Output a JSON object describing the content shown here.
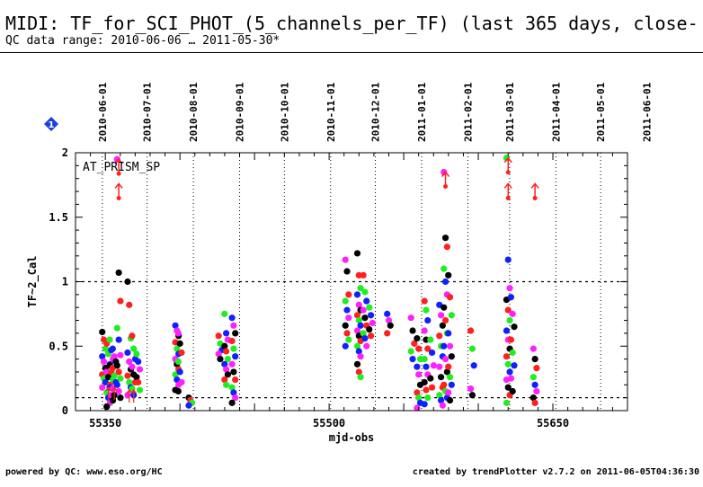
{
  "header": {
    "title": "MIDI: TF_for_SCI_PHOT_(5_channels_per_TF) (last 365 days, close-",
    "subtitle": "QC data range: 2010-06-06 … 2011-05-30*"
  },
  "footer": {
    "left": "powered by QC: www.eso.org/HC",
    "right": "created by trendPlotter v2.7.2 on 2011-06-05T04:36:30"
  },
  "badge": {
    "icon": "info-diamond-icon",
    "label": "1",
    "color": "#1a3fe0"
  },
  "colors": {
    "black": "#000000",
    "red": "#ff2020",
    "blue": "#1020ff",
    "green": "#20ee20",
    "magenta": "#ff20ff",
    "reference": "#000000"
  },
  "chart_data": {
    "type": "scatter",
    "xlabel": "mjd-obs",
    "ylabel": "TF~2_Cal",
    "annotation": "AT_PRISM_SP",
    "xlim": [
      55330,
      55700
    ],
    "ylim": [
      0,
      2
    ],
    "x_ticks": [
      {
        "value": 55350,
        "label": "55350"
      },
      {
        "value": 55500,
        "label": "55500"
      },
      {
        "value": 55650,
        "label": "55650"
      }
    ],
    "y_ticks": [
      {
        "value": 0,
        "label": "0"
      },
      {
        "value": 0.5,
        "label": "0.5"
      },
      {
        "value": 1,
        "label": "1"
      },
      {
        "value": 1.5,
        "label": "1.5"
      },
      {
        "value": 2,
        "label": "2"
      }
    ],
    "reference_lines": [
      1.0,
      0.1
    ],
    "date_markers": [
      {
        "mjd": 55348,
        "label": "2010-06-01"
      },
      {
        "mjd": 55378,
        "label": "2010-07-01"
      },
      {
        "mjd": 55409,
        "label": "2010-08-01"
      },
      {
        "mjd": 55440,
        "label": "2010-09-01"
      },
      {
        "mjd": 55470,
        "label": "2010-10-01"
      },
      {
        "mjd": 55501,
        "label": "2010-11-01"
      },
      {
        "mjd": 55531,
        "label": "2010-12-01"
      },
      {
        "mjd": 55562,
        "label": "2011-01-01"
      },
      {
        "mjd": 55593,
        "label": "2011-02-01"
      },
      {
        "mjd": 55621,
        "label": "2011-03-01"
      },
      {
        "mjd": 55652,
        "label": "2011-04-01"
      },
      {
        "mjd": 55682,
        "label": "2011-05-01"
      },
      {
        "mjd": 55713,
        "label": "2011-06-01"
      }
    ],
    "clusters": [
      {
        "x": 55349,
        "values": [
          0.61,
          0.55,
          0.48,
          0.42,
          0.38,
          0.33,
          0.28,
          0.25,
          0.22,
          0.18
        ]
      },
      {
        "x": 55352,
        "values": [
          0.52,
          0.44,
          0.36,
          0.3,
          0.26,
          0.2,
          0.14,
          0.1,
          0.06,
          0.03
        ]
      },
      {
        "x": 55354,
        "values": [
          0.55,
          0.47,
          0.4,
          0.35,
          0.3,
          0.24,
          0.18,
          0.12,
          0.08
        ]
      },
      {
        "x": 55356,
        "values": [
          0.48,
          0.42,
          0.38,
          0.33,
          0.27,
          0.22,
          0.17,
          0.12
        ]
      },
      {
        "x": 55359,
        "values": [
          1.95,
          1.07,
          0.85,
          0.64,
          0.55,
          0.43,
          0.35,
          0.3,
          0.25,
          0.2,
          0.15,
          0.1
        ]
      },
      {
        "x": 55366,
        "values": [
          1.0,
          0.82,
          0.56,
          0.45,
          0.38,
          0.32,
          0.27,
          0.22,
          0.18,
          0.12
        ]
      },
      {
        "x": 55369,
        "values": [
          0.58,
          0.48,
          0.4,
          0.34,
          0.28,
          0.22,
          0.17,
          0.12
        ]
      },
      {
        "x": 55372,
        "values": [
          0.44,
          0.38,
          0.32,
          0.26,
          0.22,
          0.16
        ]
      },
      {
        "x": 55398,
        "values": [
          0.66,
          0.62,
          0.58,
          0.53,
          0.48,
          0.44,
          0.4,
          0.36,
          0.32,
          0.28,
          0.24,
          0.2,
          0.16
        ]
      },
      {
        "x": 55400,
        "values": [
          0.6,
          0.52,
          0.45,
          0.38,
          0.3,
          0.22,
          0.15
        ]
      },
      {
        "x": 55407,
        "values": [
          0.1,
          0.08,
          0.06,
          0.04
        ]
      },
      {
        "x": 55427,
        "values": [
          0.58,
          0.52,
          0.47,
          0.44,
          0.4
        ]
      },
      {
        "x": 55431,
        "values": [
          0.75,
          0.6,
          0.55,
          0.5,
          0.46,
          0.4,
          0.36,
          0.32,
          0.28,
          0.24,
          0.2
        ]
      },
      {
        "x": 55436,
        "values": [
          0.72,
          0.66,
          0.6,
          0.54,
          0.48,
          0.42,
          0.36,
          0.3,
          0.24,
          0.18,
          0.14,
          0.1,
          0.06
        ]
      },
      {
        "x": 55512,
        "values": [
          1.17,
          1.08,
          0.9,
          0.85,
          0.78,
          0.72,
          0.66,
          0.6,
          0.55,
          0.5
        ]
      },
      {
        "x": 55520,
        "values": [
          1.22,
          1.05,
          0.95,
          0.9,
          0.82,
          0.78,
          0.74,
          0.7,
          0.66,
          0.62,
          0.58,
          0.54,
          0.5,
          0.46,
          0.42,
          0.36,
          0.3,
          0.26
        ]
      },
      {
        "x": 55524,
        "values": [
          1.05,
          0.92,
          0.85,
          0.78,
          0.72,
          0.66,
          0.6,
          0.56,
          0.5
        ]
      },
      {
        "x": 55528,
        "values": [
          0.8,
          0.74,
          0.68,
          0.63,
          0.58
        ]
      },
      {
        "x": 55540,
        "values": [
          0.75,
          0.7,
          0.66,
          0.6
        ]
      },
      {
        "x": 55556,
        "values": [
          0.72,
          0.62,
          0.52,
          0.46,
          0.4
        ]
      },
      {
        "x": 55560,
        "values": [
          0.56,
          0.48,
          0.4,
          0.34,
          0.28,
          0.2,
          0.14,
          0.1,
          0.06,
          0.02
        ]
      },
      {
        "x": 55565,
        "values": [
          0.85,
          0.78,
          0.7,
          0.62,
          0.55,
          0.48,
          0.4,
          0.34,
          0.28,
          0.22,
          0.16,
          0.1,
          0.05
        ]
      },
      {
        "x": 55569,
        "values": [
          0.55,
          0.45,
          0.35,
          0.25,
          0.18
        ]
      },
      {
        "x": 55575,
        "values": [
          0.82,
          0.74,
          0.66,
          0.58,
          0.5,
          0.42,
          0.34,
          0.26,
          0.18,
          0.12,
          0.08,
          0.04
        ]
      },
      {
        "x": 55578,
        "values": [
          1.85,
          1.34,
          1.27,
          1.1,
          1.0,
          0.9,
          0.8,
          0.7,
          0.6,
          0.5,
          0.4,
          0.3,
          0.2,
          0.15,
          0.1
        ]
      },
      {
        "x": 55581,
        "values": [
          1.05,
          0.88,
          0.74,
          0.6,
          0.5,
          0.42,
          0.34,
          0.26,
          0.2,
          0.14,
          0.08
        ]
      },
      {
        "x": 55596,
        "values": [
          0.62,
          0.48,
          0.35,
          0.17,
          0.12
        ]
      },
      {
        "x": 55620,
        "values": [
          1.96,
          1.17,
          0.95,
          0.86,
          0.78,
          0.7,
          0.62,
          0.55,
          0.48,
          0.42,
          0.36,
          0.3,
          0.24,
          0.18,
          0.12,
          0.06
        ]
      },
      {
        "x": 55623,
        "values": [
          0.88,
          0.75,
          0.65,
          0.55,
          0.45,
          0.35,
          0.25,
          0.15
        ]
      },
      {
        "x": 55638,
        "values": [
          0.48,
          0.4,
          0.33,
          0.26,
          0.2,
          0.15,
          0.1,
          0.06
        ]
      }
    ],
    "arrows": [
      {
        "x": 55359,
        "values": [
          1.95,
          1.76
        ]
      },
      {
        "x": 55578,
        "values": [
          1.85
        ]
      },
      {
        "x": 55620,
        "values": [
          1.96,
          1.76
        ]
      },
      {
        "x": 55638,
        "values": [
          1.76
        ]
      }
    ],
    "small_arrows": [
      {
        "x": 55352,
        "value": 0.18
      },
      {
        "x": 55356,
        "value": 0.18
      },
      {
        "x": 55366,
        "value": 0.16
      },
      {
        "x": 55369,
        "value": 0.16
      }
    ]
  }
}
